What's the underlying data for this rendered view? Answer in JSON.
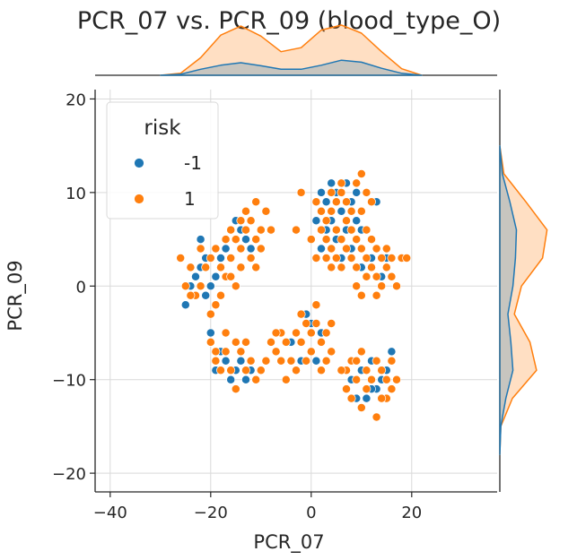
{
  "chart_data": {
    "type": "scatter",
    "title": "PCR_07 vs. PCR_09 (blood_type_O)",
    "xlabel": "PCR_07",
    "ylabel": "PCR_09",
    "xlim": [
      -43,
      37
    ],
    "ylim": [
      -22,
      21
    ],
    "xticks": [
      "−40",
      "−20",
      "0",
      "20"
    ],
    "xtick_values": [
      -40,
      -20,
      0,
      20
    ],
    "yticks": [
      "−20",
      "−10",
      "0",
      "10",
      "20"
    ],
    "ytick_values": [
      -20,
      -10,
      0,
      10,
      20
    ],
    "grid": true,
    "legend": {
      "title": "risk",
      "placement": "top-left"
    },
    "colors": {
      "-1": "#1f77b4",
      "1": "#ff7f0e",
      "grid": "#d9d9d9",
      "axis": "#262626"
    },
    "series": [
      {
        "name": "-1",
        "color": "#1f77b4",
        "points": [
          [
            -22,
            5
          ],
          [
            -25,
            -2
          ],
          [
            -23,
            1
          ],
          [
            -21,
            -1
          ],
          [
            -20,
            -5
          ],
          [
            -19,
            1
          ],
          [
            -18,
            3
          ],
          [
            -17,
            4
          ],
          [
            -16,
            6
          ],
          [
            -15,
            7
          ],
          [
            -14,
            6
          ],
          [
            -13,
            5
          ],
          [
            -12,
            4
          ],
          [
            -22,
            2
          ],
          [
            -24,
            0
          ],
          [
            -20,
            0
          ],
          [
            -21,
            3
          ],
          [
            -18,
            -7
          ],
          [
            -17,
            -8
          ],
          [
            -16,
            -10
          ],
          [
            -14,
            -8
          ],
          [
            -12,
            -9
          ],
          [
            -15,
            -9
          ],
          [
            -13,
            -10
          ],
          [
            -19,
            -9
          ],
          [
            -2,
            -8
          ],
          [
            1,
            -8
          ],
          [
            -4,
            -6
          ],
          [
            0,
            -4
          ],
          [
            2,
            -5
          ],
          [
            -1,
            -3
          ],
          [
            2,
            10
          ],
          [
            3,
            9
          ],
          [
            4,
            11
          ],
          [
            5,
            10
          ],
          [
            6,
            8
          ],
          [
            7,
            11
          ],
          [
            8,
            9
          ],
          [
            9,
            7
          ],
          [
            10,
            6
          ],
          [
            3,
            6
          ],
          [
            5,
            5
          ],
          [
            6,
            3
          ],
          [
            8,
            4
          ],
          [
            10,
            2
          ],
          [
            12,
            3
          ],
          [
            14,
            1
          ],
          [
            2,
            4
          ],
          [
            4,
            7
          ],
          [
            7,
            6
          ],
          [
            13,
            9
          ],
          [
            15,
            3
          ],
          [
            1,
            7
          ],
          [
            9,
            10
          ],
          [
            8,
            -10
          ],
          [
            10,
            -9
          ],
          [
            11,
            -12
          ],
          [
            12,
            -8
          ],
          [
            13,
            -11
          ],
          [
            14,
            -10
          ],
          [
            16,
            -7
          ],
          [
            15,
            -9
          ],
          [
            9,
            -12
          ],
          [
            12,
            -11
          ]
        ]
      },
      {
        "name": "1",
        "color": "#ff7f0e",
        "points": [
          [
            -26,
            3
          ],
          [
            -25,
            0
          ],
          [
            -24,
            2
          ],
          [
            -23,
            -1
          ],
          [
            -22,
            0
          ],
          [
            -21,
            2
          ],
          [
            -20,
            3
          ],
          [
            -19,
            4
          ],
          [
            -18,
            2
          ],
          [
            -17,
            1
          ],
          [
            -16,
            3
          ],
          [
            -15,
            5
          ],
          [
            -14,
            4
          ],
          [
            -13,
            6
          ],
          [
            -12,
            7
          ],
          [
            -11,
            5
          ],
          [
            -10,
            6
          ],
          [
            -9,
            8
          ],
          [
            -12,
            3
          ],
          [
            -14,
            2
          ],
          [
            -16,
            1
          ],
          [
            -18,
            -1
          ],
          [
            -20,
            -3
          ],
          [
            -13,
            8
          ],
          [
            -11,
            9
          ],
          [
            -15,
            0
          ],
          [
            -17,
            5
          ],
          [
            -22,
            4
          ],
          [
            -24,
            -1
          ],
          [
            -19,
            -2
          ],
          [
            -10,
            4
          ],
          [
            -8,
            6
          ],
          [
            -11,
            2
          ],
          [
            -14,
            7
          ],
          [
            -16,
            6
          ],
          [
            -20,
            -6
          ],
          [
            -19,
            -8
          ],
          [
            -18,
            -9
          ],
          [
            -17,
            -7
          ],
          [
            -16,
            -9
          ],
          [
            -15,
            -11
          ],
          [
            -14,
            -7
          ],
          [
            -13,
            -9
          ],
          [
            -12,
            -8
          ],
          [
            -11,
            -10
          ],
          [
            -10,
            -9
          ],
          [
            -9,
            -8
          ],
          [
            -17,
            -5
          ],
          [
            -15,
            -6
          ],
          [
            -13,
            -6
          ],
          [
            -19,
            -7
          ],
          [
            -8,
            -6
          ],
          [
            -7,
            -7
          ],
          [
            -6,
            -5
          ],
          [
            -5,
            -6
          ],
          [
            -4,
            -8
          ],
          [
            -3,
            -5
          ],
          [
            -2,
            -6
          ],
          [
            -1,
            -4
          ],
          [
            0,
            -5
          ],
          [
            1,
            -4
          ],
          [
            2,
            -6
          ],
          [
            3,
            -5
          ],
          [
            4,
            -7
          ],
          [
            -3,
            -9
          ],
          [
            -1,
            -8
          ],
          [
            0,
            -7
          ],
          [
            2,
            -9
          ],
          [
            3,
            -8
          ],
          [
            -5,
            -10
          ],
          [
            -6,
            -8
          ],
          [
            1,
            -2
          ],
          [
            -2,
            -3
          ],
          [
            4,
            -4
          ],
          [
            -7,
            -5
          ],
          [
            1,
            9
          ],
          [
            2,
            8
          ],
          [
            3,
            7
          ],
          [
            4,
            8
          ],
          [
            5,
            9
          ],
          [
            6,
            10
          ],
          [
            7,
            9
          ],
          [
            8,
            8
          ],
          [
            9,
            11
          ],
          [
            10,
            12
          ],
          [
            11,
            10
          ],
          [
            12,
            9
          ],
          [
            2,
            6
          ],
          [
            3,
            5
          ],
          [
            4,
            4
          ],
          [
            5,
            3
          ],
          [
            6,
            2
          ],
          [
            7,
            4
          ],
          [
            8,
            3
          ],
          [
            9,
            5
          ],
          [
            10,
            4
          ],
          [
            11,
            3
          ],
          [
            12,
            2
          ],
          [
            13,
            1
          ],
          [
            14,
            0
          ],
          [
            15,
            2
          ],
          [
            16,
            1
          ],
          [
            17,
            0
          ],
          [
            18,
            3
          ],
          [
            19,
            3
          ],
          [
            1,
            3
          ],
          [
            0,
            5
          ],
          [
            3,
            3
          ],
          [
            5,
            6
          ],
          [
            7,
            7
          ],
          [
            9,
            2
          ],
          [
            11,
            1
          ],
          [
            13,
            4
          ],
          [
            15,
            4
          ],
          [
            8,
            6
          ],
          [
            4,
            2
          ],
          [
            6,
            5
          ],
          [
            10,
            8
          ],
          [
            -2,
            10
          ],
          [
            -3,
            6
          ],
          [
            12,
            5
          ],
          [
            14,
            3
          ],
          [
            16,
            3
          ],
          [
            11,
            6
          ],
          [
            13,
            -1
          ],
          [
            10,
            -1
          ],
          [
            9,
            0
          ],
          [
            6,
            11
          ],
          [
            4,
            10
          ],
          [
            7,
            -9
          ],
          [
            8,
            -8
          ],
          [
            9,
            -10
          ],
          [
            10,
            -7
          ],
          [
            11,
            -9
          ],
          [
            12,
            -10
          ],
          [
            13,
            -8
          ],
          [
            14,
            -9
          ],
          [
            15,
            -10
          ],
          [
            16,
            -8
          ],
          [
            17,
            -10
          ],
          [
            8,
            -12
          ],
          [
            10,
            -13
          ],
          [
            13,
            -14
          ],
          [
            15,
            -12
          ],
          [
            11,
            -11
          ],
          [
            7,
            -11
          ],
          [
            6,
            -9
          ],
          [
            14,
            -12
          ],
          [
            16,
            -11
          ],
          [
            9,
            -8
          ]
        ]
      }
    ],
    "marginal_x": {
      "x": [
        -30,
        -26,
        -22,
        -18,
        -14,
        -10,
        -6,
        -2,
        2,
        6,
        10,
        14,
        18,
        22
      ],
      "all": [
        0,
        0.04,
        0.35,
        0.8,
        0.98,
        0.78,
        0.47,
        0.55,
        0.9,
        1.0,
        0.84,
        0.47,
        0.13,
        0
      ],
      "neg": [
        0,
        0.02,
        0.12,
        0.2,
        0.25,
        0.19,
        0.12,
        0.12,
        0.2,
        0.3,
        0.26,
        0.14,
        0.04,
        0
      ]
    },
    "marginal_y": {
      "y": [
        -18,
        -15,
        -12,
        -9,
        -6,
        -3,
        0,
        3,
        6,
        9,
        12,
        15
      ],
      "all": [
        0,
        0.02,
        0.25,
        0.73,
        0.6,
        0.29,
        0.43,
        0.85,
        0.94,
        0.52,
        0.08,
        0
      ],
      "neg": [
        0,
        0.02,
        0.12,
        0.26,
        0.22,
        0.16,
        0.26,
        0.31,
        0.33,
        0.2,
        0.05,
        0
      ]
    }
  }
}
